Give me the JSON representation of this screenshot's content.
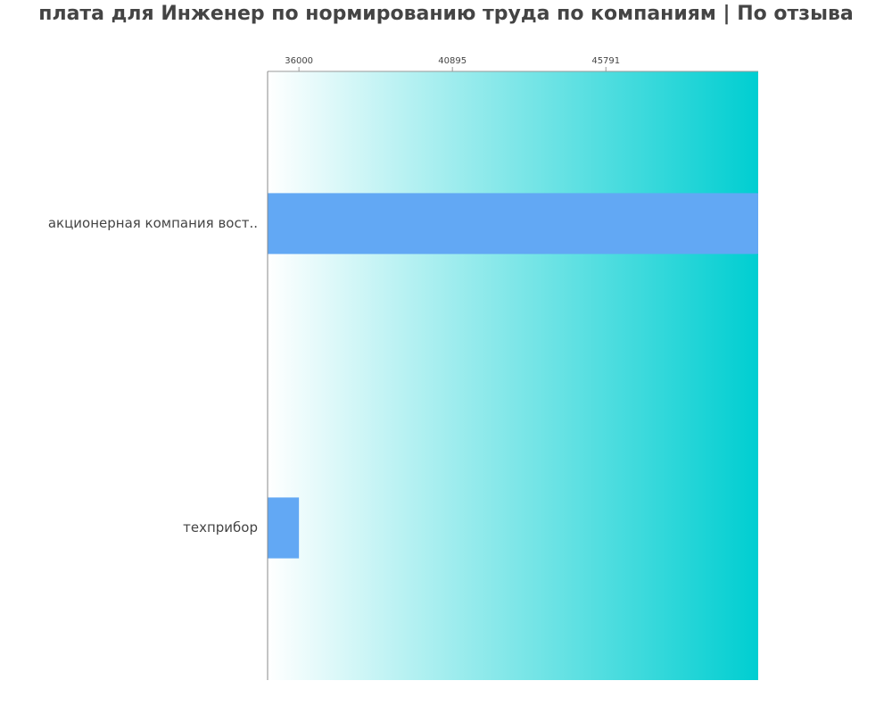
{
  "chart_data": {
    "type": "bar",
    "orientation": "horizontal",
    "title": "плата для Инженер по нормированию труда по компаниям  | По отзыва",
    "categories": [
      "акционерная компания вост..",
      "техприбор"
    ],
    "values": [
      50650,
      36000
    ],
    "color": "#62a8f4",
    "xlim": [
      35000,
      50650
    ],
    "xticks": [
      36000,
      40895,
      45791
    ],
    "background_gradient": [
      "#ffffff",
      "#00ced1"
    ]
  }
}
